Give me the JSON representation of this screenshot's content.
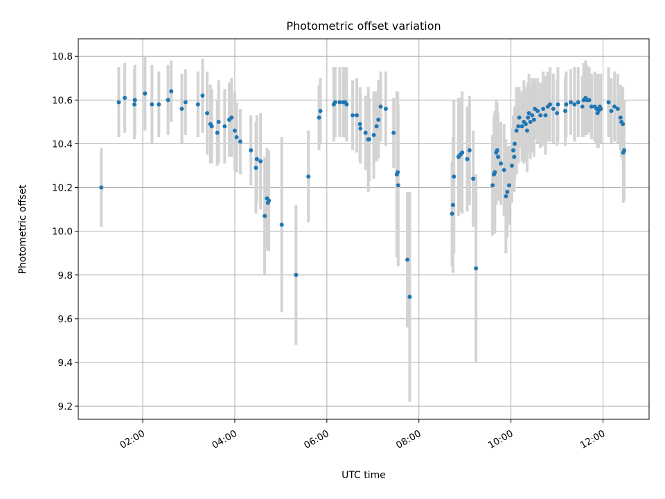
{
  "chart_data": {
    "type": "scatter",
    "title": "Photometric offset variation",
    "xlabel": "UTC time",
    "ylabel": "Photometric offset",
    "xlim": [
      0.6,
      13.0
    ],
    "ylim": [
      9.14,
      10.88
    ],
    "grid": true,
    "point_color": "#1f77b4",
    "errorbar_color": "#d3d3d3",
    "x_ticks": [
      {
        "value": 2,
        "label": "02:00"
      },
      {
        "value": 4,
        "label": "04:00"
      },
      {
        "value": 6,
        "label": "06:00"
      },
      {
        "value": 8,
        "label": "08:00"
      },
      {
        "value": 10,
        "label": "10:00"
      },
      {
        "value": 12,
        "label": "12:00"
      }
    ],
    "y_ticks": [
      {
        "value": 9.2,
        "label": "9.2"
      },
      {
        "value": 9.4,
        "label": "9.4"
      },
      {
        "value": 9.6,
        "label": "9.6"
      },
      {
        "value": 9.8,
        "label": "9.8"
      },
      {
        "value": 10.0,
        "label": "10.0"
      },
      {
        "value": 10.2,
        "label": "10.2"
      },
      {
        "value": 10.4,
        "label": "10.4"
      },
      {
        "value": 10.6,
        "label": "10.6"
      },
      {
        "value": 10.8,
        "label": "10.8"
      }
    ],
    "x_unit": "hours UTC",
    "points": [
      [
        1.1,
        10.2,
        0.18
      ],
      [
        1.48,
        10.59,
        0.16
      ],
      [
        1.61,
        10.61,
        0.16
      ],
      [
        1.82,
        10.58,
        0.16
      ],
      [
        1.83,
        10.6,
        0.16
      ],
      [
        2.05,
        10.63,
        0.17
      ],
      [
        2.2,
        10.58,
        0.18
      ],
      [
        2.35,
        10.58,
        0.15
      ],
      [
        2.55,
        10.6,
        0.16
      ],
      [
        2.62,
        10.64,
        0.14
      ],
      [
        2.85,
        10.56,
        0.16
      ],
      [
        2.93,
        10.59,
        0.15
      ],
      [
        3.2,
        10.58,
        0.15
      ],
      [
        3.3,
        10.62,
        0.17
      ],
      [
        3.4,
        10.54,
        0.19
      ],
      [
        3.47,
        10.49,
        0.18
      ],
      [
        3.5,
        10.48,
        0.17
      ],
      [
        3.62,
        10.45,
        0.15
      ],
      [
        3.65,
        10.5,
        0.19
      ],
      [
        3.78,
        10.48,
        0.17
      ],
      [
        3.88,
        10.51,
        0.17
      ],
      [
        3.93,
        10.52,
        0.18
      ],
      [
        4.0,
        10.46,
        0.18
      ],
      [
        4.04,
        10.43,
        0.16
      ],
      [
        4.12,
        10.41,
        0.15
      ],
      [
        4.35,
        10.37,
        0.16
      ],
      [
        4.46,
        10.29,
        0.21
      ],
      [
        4.48,
        10.33,
        0.2
      ],
      [
        4.56,
        10.32,
        0.22
      ],
      [
        4.65,
        10.07,
        0.27
      ],
      [
        4.7,
        10.15,
        0.23
      ],
      [
        4.72,
        10.13,
        0.22
      ],
      [
        4.74,
        10.14,
        0.23
      ],
      [
        5.02,
        10.03,
        0.4
      ],
      [
        5.33,
        9.8,
        0.32
      ],
      [
        5.6,
        10.25,
        0.21
      ],
      [
        5.83,
        10.52,
        0.15
      ],
      [
        5.86,
        10.55,
        0.15
      ],
      [
        6.15,
        10.58,
        0.17
      ],
      [
        6.18,
        10.59,
        0.16
      ],
      [
        6.28,
        10.59,
        0.16
      ],
      [
        6.36,
        10.59,
        0.16
      ],
      [
        6.4,
        10.59,
        0.16
      ],
      [
        6.43,
        10.58,
        0.17
      ],
      [
        6.56,
        10.53,
        0.16
      ],
      [
        6.65,
        10.53,
        0.17
      ],
      [
        6.72,
        10.49,
        0.17
      ],
      [
        6.73,
        10.47,
        0.16
      ],
      [
        6.84,
        10.45,
        0.17
      ],
      [
        6.9,
        10.42,
        0.24
      ],
      [
        6.92,
        10.42,
        0.19
      ],
      [
        7.02,
        10.44,
        0.2
      ],
      [
        7.08,
        10.48,
        0.16
      ],
      [
        7.12,
        10.51,
        0.18
      ],
      [
        7.17,
        10.57,
        0.16
      ],
      [
        7.28,
        10.56,
        0.17
      ],
      [
        7.45,
        10.45,
        0.16
      ],
      [
        7.52,
        10.26,
        0.38
      ],
      [
        7.54,
        10.27,
        0.37
      ],
      [
        7.55,
        10.21,
        0.37
      ],
      [
        7.75,
        9.87,
        0.31
      ],
      [
        7.8,
        9.7,
        0.48
      ],
      [
        8.72,
        10.08,
        0.24
      ],
      [
        8.74,
        10.12,
        0.31
      ],
      [
        8.76,
        10.25,
        0.35
      ],
      [
        8.86,
        10.34,
        0.27
      ],
      [
        8.9,
        10.35,
        0.26
      ],
      [
        8.94,
        10.36,
        0.28
      ],
      [
        9.05,
        10.33,
        0.24
      ],
      [
        9.1,
        10.37,
        0.25
      ],
      [
        9.18,
        10.24,
        0.22
      ],
      [
        9.24,
        9.83,
        0.43
      ],
      [
        9.6,
        10.21,
        0.23
      ],
      [
        9.63,
        10.26,
        0.27
      ],
      [
        9.65,
        10.27,
        0.28
      ],
      [
        9.68,
        10.36,
        0.24
      ],
      [
        9.7,
        10.37,
        0.22
      ],
      [
        9.72,
        10.34,
        0.2
      ],
      [
        9.78,
        10.31,
        0.19
      ],
      [
        9.85,
        10.28,
        0.21
      ],
      [
        9.89,
        10.16,
        0.26
      ],
      [
        9.92,
        10.18,
        0.21
      ],
      [
        9.96,
        10.21,
        0.18
      ],
      [
        10.02,
        10.3,
        0.17
      ],
      [
        10.05,
        10.37,
        0.16
      ],
      [
        10.07,
        10.34,
        0.16
      ],
      [
        10.08,
        10.4,
        0.17
      ],
      [
        10.12,
        10.46,
        0.2
      ],
      [
        10.16,
        10.48,
        0.17
      ],
      [
        10.18,
        10.52,
        0.14
      ],
      [
        10.24,
        10.48,
        0.16
      ],
      [
        10.28,
        10.5,
        0.19
      ],
      [
        10.32,
        10.49,
        0.17
      ],
      [
        10.35,
        10.46,
        0.19
      ],
      [
        10.37,
        10.52,
        0.16
      ],
      [
        10.39,
        10.54,
        0.18
      ],
      [
        10.42,
        10.5,
        0.17
      ],
      [
        10.46,
        10.53,
        0.17
      ],
      [
        10.5,
        10.51,
        0.17
      ],
      [
        10.52,
        10.56,
        0.14
      ],
      [
        10.58,
        10.55,
        0.15
      ],
      [
        10.64,
        10.53,
        0.15
      ],
      [
        10.7,
        10.56,
        0.17
      ],
      [
        10.75,
        10.53,
        0.18
      ],
      [
        10.8,
        10.57,
        0.16
      ],
      [
        10.85,
        10.58,
        0.17
      ],
      [
        10.92,
        10.56,
        0.16
      ],
      [
        11.0,
        10.54,
        0.15
      ],
      [
        11.02,
        10.58,
        0.17
      ],
      [
        11.18,
        10.55,
        0.16
      ],
      [
        11.2,
        10.58,
        0.15
      ],
      [
        11.3,
        10.59,
        0.15
      ],
      [
        11.38,
        10.58,
        0.17
      ],
      [
        11.46,
        10.59,
        0.16
      ],
      [
        11.55,
        10.57,
        0.14
      ],
      [
        11.58,
        10.6,
        0.17
      ],
      [
        11.62,
        10.61,
        0.17
      ],
      [
        11.65,
        10.6,
        0.16
      ],
      [
        11.7,
        10.6,
        0.15
      ],
      [
        11.75,
        10.57,
        0.15
      ],
      [
        11.82,
        10.57,
        0.16
      ],
      [
        11.86,
        10.56,
        0.16
      ],
      [
        11.88,
        10.54,
        0.16
      ],
      [
        11.9,
        10.55,
        0.17
      ],
      [
        11.93,
        10.57,
        0.15
      ],
      [
        11.95,
        10.56,
        0.16
      ],
      [
        12.12,
        10.59,
        0.16
      ],
      [
        12.18,
        10.55,
        0.15
      ],
      [
        12.25,
        10.57,
        0.16
      ],
      [
        12.32,
        10.56,
        0.16
      ],
      [
        12.38,
        10.52,
        0.15
      ],
      [
        12.4,
        10.5,
        0.16
      ],
      [
        12.43,
        10.49,
        0.17
      ],
      [
        12.44,
        10.36,
        0.23
      ],
      [
        12.46,
        10.37,
        0.23
      ]
    ]
  }
}
